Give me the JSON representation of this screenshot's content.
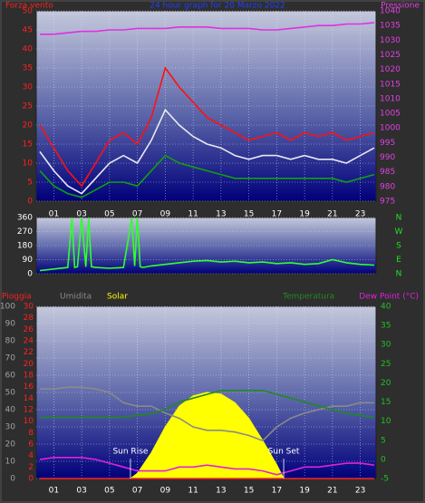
{
  "chart_data": [
    {
      "type": "line",
      "title": "24 hour graph for 20 Marzo 2022",
      "y_label": "Forza vento",
      "y2_label": "Pressione",
      "y_color": "#ff2020",
      "y2_color": "#e040e0",
      "grid": true,
      "x": [
        0,
        1,
        2,
        3,
        4,
        5,
        6,
        7,
        8,
        9,
        10,
        11,
        12,
        13,
        14,
        15,
        16,
        17,
        18,
        19,
        20,
        21,
        22,
        23,
        24
      ],
      "xlim": [
        0,
        24
      ],
      "xticks": [
        {
          "value": 1,
          "label": "01"
        },
        {
          "value": 3,
          "label": "03"
        },
        {
          "value": 5,
          "label": "05"
        },
        {
          "value": 7,
          "label": "07"
        },
        {
          "value": 9,
          "label": "09"
        },
        {
          "value": 11,
          "label": "11"
        },
        {
          "value": 13,
          "label": "13"
        },
        {
          "value": 15,
          "label": "15"
        },
        {
          "value": 17,
          "label": "17"
        },
        {
          "value": 19,
          "label": "19"
        },
        {
          "value": 21,
          "label": "21"
        },
        {
          "value": 23,
          "label": "23"
        }
      ],
      "ylim": [
        0,
        50
      ],
      "yticks": [
        0,
        5,
        10,
        15,
        20,
        25,
        30,
        35,
        40,
        45,
        50
      ],
      "y2lim": [
        975,
        1040
      ],
      "y2ticks": [
        975,
        980,
        985,
        990,
        995,
        1000,
        1005,
        1010,
        1015,
        1020,
        1025,
        1030,
        1035,
        1040
      ],
      "series": [
        {
          "color": "#ff1010",
          "values": [
            20,
            14,
            8,
            4,
            10,
            16,
            18,
            15,
            22,
            35,
            30,
            26,
            22,
            20,
            18,
            16,
            17,
            18,
            16,
            18,
            17,
            18,
            16,
            17,
            18
          ]
        },
        {
          "color": "#10a010",
          "values": [
            8,
            4,
            2,
            1,
            3,
            5,
            5,
            4,
            8,
            12,
            10,
            9,
            8,
            7,
            6,
            6,
            6,
            6,
            6,
            6,
            6,
            6,
            5,
            6,
            7
          ]
        },
        {
          "color": "#e8e8f0",
          "values": [
            13,
            8,
            4,
            2,
            6,
            10,
            12,
            10,
            16,
            24,
            20,
            17,
            15,
            14,
            12,
            11,
            12,
            12,
            11,
            12,
            11,
            11,
            10,
            12,
            14
          ]
        },
        {
          "color": "#e030e0",
          "axis": "y2",
          "values": [
            1032,
            1032,
            1032.5,
            1033,
            1033,
            1033.5,
            1033.5,
            1034,
            1034,
            1034,
            1034.5,
            1034.5,
            1034.5,
            1034,
            1034,
            1034,
            1033.5,
            1033.5,
            1034,
            1034.5,
            1035,
            1035,
            1035.5,
            1035.5,
            1036
          ]
        }
      ]
    },
    {
      "type": "line",
      "y_color": "#ffffff",
      "y2_color": "#20e020",
      "grid": true,
      "x": [
        0,
        1,
        2,
        2.3,
        2.5,
        2.7,
        3,
        3.3,
        3.5,
        3.7,
        4,
        5,
        6,
        6.6,
        6.8,
        7,
        7.2,
        7.4,
        8,
        9,
        10,
        11,
        12,
        13,
        14,
        15,
        16,
        17,
        18,
        19,
        20,
        21,
        22,
        23,
        24
      ],
      "xlim": [
        0,
        24
      ],
      "ylim": [
        0,
        360
      ],
      "yticks": [
        0,
        90,
        180,
        270,
        360
      ],
      "y2lim": [
        0,
        360
      ],
      "y2ticks": [
        {
          "value": 0,
          "label": "N"
        },
        {
          "value": 90,
          "label": "E"
        },
        {
          "value": 180,
          "label": "S"
        },
        {
          "value": 270,
          "label": "W"
        },
        {
          "value": 360,
          "label": "N"
        }
      ],
      "series": [
        {
          "color": "#30ff30",
          "values": [
            20,
            30,
            40,
            360,
            40,
            45,
            360,
            45,
            360,
            45,
            40,
            35,
            40,
            360,
            50,
            360,
            45,
            40,
            50,
            60,
            70,
            80,
            85,
            75,
            80,
            70,
            75,
            65,
            70,
            60,
            65,
            90,
            70,
            60,
            55
          ]
        }
      ]
    },
    {
      "type": "line",
      "grid": true,
      "x": [
        0,
        1,
        2,
        3,
        4,
        5,
        6,
        7,
        8,
        9,
        10,
        11,
        12,
        13,
        14,
        15,
        16,
        17,
        18,
        19,
        20,
        21,
        22,
        23,
        24
      ],
      "xlim": [
        0,
        24
      ],
      "xticks": [
        {
          "value": 1,
          "label": "01"
        },
        {
          "value": 3,
          "label": "03"
        },
        {
          "value": 5,
          "label": "05"
        },
        {
          "value": 7,
          "label": "07"
        },
        {
          "value": 9,
          "label": "09"
        },
        {
          "value": 11,
          "label": "11"
        },
        {
          "value": 13,
          "label": "13"
        },
        {
          "value": 15,
          "label": "15"
        },
        {
          "value": 17,
          "label": "17"
        },
        {
          "value": 19,
          "label": "19"
        },
        {
          "value": 21,
          "label": "21"
        },
        {
          "value": 23,
          "label": "23"
        }
      ],
      "ylim": [
        0,
        100
      ],
      "yticks": [
        0,
        10,
        20,
        30,
        40,
        50,
        60,
        70,
        80,
        90,
        100
      ],
      "y_color": "#a0a0a0",
      "y3lim": [
        0,
        30
      ],
      "y3ticks": [
        0,
        2,
        4,
        6,
        8,
        10,
        12,
        14,
        16,
        18,
        20,
        22,
        24,
        26,
        28,
        30
      ],
      "y3_color": "#ff2020",
      "y2lim": [
        -5,
        40
      ],
      "y2ticks": [
        -5,
        0,
        5,
        10,
        15,
        20,
        25,
        30,
        35,
        40
      ],
      "y2_color": "#20c020",
      "series": [
        {
          "name": "Solar",
          "color": "#ffff00",
          "fill": true,
          "x": [
            0,
            6.5,
            7,
            8,
            9,
            10,
            11,
            12,
            13,
            14,
            15,
            16,
            17,
            17.5,
            24
          ],
          "values": [
            0,
            0,
            3,
            15,
            30,
            42,
            48,
            50,
            49,
            44,
            35,
            22,
            8,
            0,
            0
          ]
        },
        {
          "name": "Pioggia",
          "color": "#ff2020",
          "axis": "y3",
          "values": [
            0,
            0,
            0,
            0,
            0,
            0,
            0,
            0,
            0,
            0,
            0,
            0,
            0,
            0,
            0,
            0,
            0,
            0,
            0,
            0,
            0,
            0,
            0,
            0,
            0
          ]
        },
        {
          "name": "Umidita",
          "color": "#8a8a8a",
          "values": [
            52,
            52,
            53,
            53,
            52,
            50,
            44,
            42,
            42,
            38,
            35,
            30,
            28,
            28,
            27,
            25,
            22,
            30,
            35,
            38,
            40,
            42,
            42,
            44,
            44
          ]
        },
        {
          "name": "Temperatura",
          "color": "#208a20",
          "axis": "y2",
          "values": [
            11,
            11,
            11,
            11,
            11,
            11,
            11,
            11.5,
            12,
            13,
            15,
            16,
            17,
            18,
            18,
            18,
            18,
            17,
            16,
            15,
            14,
            13,
            12,
            11.5,
            11
          ]
        },
        {
          "name": "Dew Point (°C)",
          "color": "#e020e0",
          "axis": "y2",
          "values": [
            0,
            0.5,
            0.5,
            0.5,
            0,
            -1,
            -2,
            -3,
            -3,
            -3,
            -2,
            -2,
            -1.5,
            -2,
            -2.5,
            -2.5,
            -3,
            -4,
            -3,
            -2,
            -2,
            -1.5,
            -1,
            -1,
            -1.5
          ]
        }
      ],
      "annotations": [
        {
          "text": "Sun Rise",
          "x": 6.5
        },
        {
          "text": "Sun Set",
          "x": 17.5
        }
      ]
    }
  ]
}
